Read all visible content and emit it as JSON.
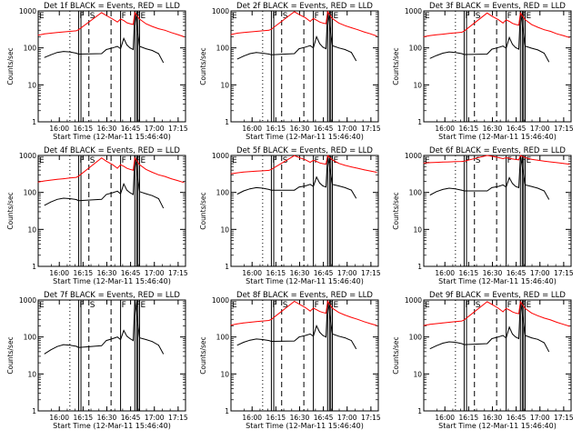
{
  "colors": {
    "events": "#000000",
    "lld": "#ff0000",
    "axis": "#000000",
    "background": "#ffffff"
  },
  "common": {
    "ylabel": "Counts/sec",
    "xlabel": "Start Time (12-Mar-11 15:46:40)",
    "x_ticks": [
      "16:00",
      "16:15",
      "16:30",
      "16:45",
      "17:00",
      "17:15"
    ],
    "y_ticks": [
      "1",
      "10",
      "100",
      "1000"
    ],
    "event_markers": [
      "F",
      "S",
      "F",
      "F",
      "E"
    ]
  },
  "chart_data": [
    {
      "type": "line",
      "title": "Det 1f BLACK = Events, RED = LLD",
      "x_unit": "minutes since 15:46:40",
      "x_ticks_min": [
        13.33,
        28.33,
        43.33,
        58.33,
        73.33,
        88.33
      ],
      "ylim": [
        1,
        1000
      ],
      "ylog": true,
      "xlim": [
        0,
        93
      ],
      "series": [
        {
          "name": "Events",
          "color": "#000000",
          "x": [
            4,
            8,
            12,
            16,
            20,
            24,
            25.5,
            40,
            43,
            47,
            50,
            52,
            54,
            56,
            58,
            60,
            61,
            64,
            68,
            72,
            76,
            79
          ],
          "y": [
            55,
            65,
            75,
            80,
            78,
            72,
            68,
            70,
            90,
            100,
            110,
            95,
            180,
            120,
            100,
            90,
            1000,
            110,
            95,
            85,
            70,
            40
          ]
        },
        {
          "name": "LLD",
          "color": "#ff0000",
          "x": [
            0,
            4,
            8,
            12,
            16,
            20,
            24,
            25.5,
            40,
            43,
            47,
            50,
            52,
            54,
            56,
            58,
            60,
            61,
            64,
            68,
            72,
            76,
            80,
            84,
            88,
            92
          ],
          "y": [
            220,
            240,
            250,
            260,
            270,
            280,
            290,
            310,
            900,
            750,
            600,
            500,
            600,
            550,
            480,
            450,
            430,
            900,
            600,
            450,
            380,
            330,
            300,
            260,
            230,
            200
          ]
        }
      ]
    },
    {
      "type": "line",
      "title": "Det 2f BLACK = Events, RED = LLD",
      "x_unit": "minutes since 15:46:40",
      "x_ticks_min": [
        13.33,
        28.33,
        43.33,
        58.33,
        73.33,
        88.33
      ],
      "ylim": [
        1,
        1000
      ],
      "ylog": true,
      "xlim": [
        0,
        93
      ],
      "series": [
        {
          "name": "Events",
          "color": "#000000",
          "x": [
            4,
            8,
            12,
            16,
            20,
            24,
            25.5,
            40,
            43,
            47,
            50,
            52,
            54,
            56,
            58,
            60,
            61,
            64,
            68,
            72,
            76,
            79
          ],
          "y": [
            50,
            60,
            70,
            75,
            72,
            68,
            65,
            70,
            95,
            105,
            115,
            100,
            200,
            130,
            105,
            95,
            1000,
            115,
            100,
            90,
            75,
            45
          ]
        },
        {
          "name": "LLD",
          "color": "#ff0000",
          "x": [
            0,
            4,
            8,
            12,
            16,
            20,
            24,
            25.5,
            40,
            43,
            47,
            50,
            52,
            54,
            56,
            58,
            60,
            61,
            64,
            68,
            72,
            76,
            80,
            84,
            88,
            92
          ],
          "y": [
            230,
            250,
            260,
            270,
            280,
            290,
            300,
            320,
            950,
            800,
            650,
            520,
            620,
            560,
            500,
            470,
            450,
            950,
            620,
            470,
            400,
            350,
            310,
            270,
            240,
            210
          ]
        }
      ]
    },
    {
      "type": "line",
      "title": "Det 3f BLACK = Events, RED = LLD",
      "x_unit": "minutes since 15:46:40",
      "x_ticks_min": [
        13.33,
        28.33,
        43.33,
        58.33,
        73.33,
        88.33
      ],
      "ylim": [
        1,
        1000
      ],
      "ylog": true,
      "xlim": [
        0,
        93
      ],
      "series": [
        {
          "name": "Events",
          "color": "#000000",
          "x": [
            4,
            8,
            12,
            16,
            20,
            24,
            25.5,
            40,
            43,
            47,
            50,
            52,
            54,
            56,
            58,
            60,
            61,
            64,
            68,
            72,
            76,
            79
          ],
          "y": [
            52,
            62,
            72,
            78,
            75,
            70,
            66,
            68,
            92,
            102,
            112,
            98,
            190,
            125,
            102,
            92,
            1000,
            112,
            98,
            88,
            72,
            42
          ]
        },
        {
          "name": "LLD",
          "color": "#ff0000",
          "x": [
            0,
            4,
            8,
            12,
            16,
            20,
            24,
            25.5,
            40,
            43,
            47,
            50,
            52,
            54,
            56,
            58,
            60,
            61,
            64,
            68,
            72,
            76,
            80,
            84,
            88,
            92
          ],
          "y": [
            200,
            215,
            225,
            235,
            245,
            255,
            265,
            285,
            880,
            720,
            580,
            470,
            570,
            520,
            460,
            430,
            410,
            880,
            580,
            430,
            360,
            310,
            280,
            240,
            215,
            190
          ]
        }
      ]
    },
    {
      "type": "line",
      "title": "Det 4f BLACK = Events, RED = LLD",
      "x_unit": "minutes since 15:46:40",
      "x_ticks_min": [
        13.33,
        28.33,
        43.33,
        58.33,
        73.33,
        88.33
      ],
      "ylim": [
        1,
        1000
      ],
      "ylog": true,
      "xlim": [
        0,
        93
      ],
      "series": [
        {
          "name": "Events",
          "color": "#000000",
          "x": [
            4,
            8,
            12,
            16,
            20,
            24,
            25.5,
            40,
            43,
            47,
            50,
            52,
            54,
            56,
            58,
            60,
            61,
            64,
            68,
            72,
            76,
            79
          ],
          "y": [
            45,
            55,
            65,
            70,
            68,
            64,
            60,
            65,
            88,
            98,
            108,
            92,
            170,
            115,
            98,
            88,
            1000,
            105,
            92,
            82,
            68,
            38
          ]
        },
        {
          "name": "LLD",
          "color": "#ff0000",
          "x": [
            0,
            4,
            8,
            12,
            16,
            20,
            24,
            25.5,
            40,
            43,
            47,
            50,
            52,
            54,
            56,
            58,
            60,
            61,
            64,
            68,
            72,
            76,
            80,
            84,
            88,
            92
          ],
          "y": [
            190,
            205,
            215,
            225,
            235,
            245,
            255,
            275,
            860,
            700,
            560,
            450,
            560,
            510,
            450,
            420,
            400,
            860,
            560,
            420,
            350,
            300,
            270,
            235,
            210,
            185
          ]
        }
      ]
    },
    {
      "type": "line",
      "title": "Det 5f BLACK = Events, RED = LLD",
      "x_unit": "minutes since 15:46:40",
      "x_ticks_min": [
        13.33,
        28.33,
        43.33,
        58.33,
        73.33,
        88.33
      ],
      "ylim": [
        1,
        1000
      ],
      "ylog": true,
      "xlim": [
        0,
        93
      ],
      "series": [
        {
          "name": "Events",
          "color": "#000000",
          "x": [
            4,
            8,
            12,
            16,
            20,
            24,
            25.5,
            40,
            43,
            47,
            50,
            52,
            54,
            56,
            58,
            60,
            61,
            64,
            68,
            72,
            76,
            79
          ],
          "y": [
            90,
            110,
            125,
            135,
            130,
            120,
            115,
            115,
            140,
            150,
            165,
            145,
            260,
            180,
            150,
            140,
            1000,
            165,
            150,
            135,
            115,
            70
          ]
        },
        {
          "name": "LLD",
          "color": "#ff0000",
          "x": [
            0,
            4,
            8,
            12,
            16,
            20,
            24,
            25.5,
            40,
            43,
            47,
            50,
            52,
            54,
            56,
            58,
            60,
            61,
            64,
            68,
            72,
            76,
            80,
            84,
            88,
            92
          ],
          "y": [
            320,
            340,
            355,
            365,
            375,
            385,
            395,
            420,
            990,
            880,
            760,
            650,
            740,
            690,
            630,
            600,
            580,
            990,
            760,
            610,
            540,
            490,
            450,
            410,
            380,
            350
          ]
        }
      ]
    },
    {
      "type": "line",
      "title": "Det 6f BLACK = Events, RED = LLD",
      "x_unit": "minutes since 15:46:40",
      "x_ticks_min": [
        13.33,
        28.33,
        43.33,
        58.33,
        73.33,
        88.33
      ],
      "ylim": [
        1,
        1000
      ],
      "ylog": true,
      "xlim": [
        0,
        93
      ],
      "series": [
        {
          "name": "Events",
          "color": "#000000",
          "x": [
            4,
            8,
            12,
            16,
            20,
            24,
            25.5,
            40,
            43,
            47,
            50,
            52,
            54,
            56,
            58,
            60,
            61,
            64,
            68,
            72,
            76,
            79
          ],
          "y": [
            85,
            105,
            120,
            130,
            125,
            115,
            110,
            110,
            135,
            145,
            160,
            140,
            250,
            175,
            145,
            135,
            1000,
            160,
            145,
            130,
            110,
            65
          ]
        },
        {
          "name": "LLD",
          "color": "#ff0000",
          "x": [
            0,
            4,
            8,
            12,
            16,
            20,
            24,
            25.5,
            40,
            43,
            47,
            50,
            52,
            54,
            56,
            58,
            60,
            61,
            64,
            68,
            72,
            76,
            80,
            84,
            88,
            92
          ],
          "y": [
            620,
            640,
            650,
            660,
            670,
            680,
            690,
            700,
            1000,
            950,
            880,
            820,
            870,
            840,
            800,
            780,
            760,
            1000,
            880,
            790,
            740,
            700,
            670,
            640,
            610,
            580
          ]
        }
      ]
    },
    {
      "type": "line",
      "title": "Det 7f BLACK = Events, RED = LLD",
      "x_unit": "minutes since 15:46:40",
      "x_ticks_min": [
        13.33,
        28.33,
        43.33,
        58.33,
        73.33,
        88.33
      ],
      "ylim": [
        1,
        1000
      ],
      "ylog": true,
      "xlim": [
        0,
        93
      ],
      "series": [
        {
          "name": "Events",
          "color": "#000000",
          "x": [
            4,
            8,
            12,
            16,
            20,
            24,
            25.5,
            40,
            43,
            47,
            50,
            52,
            54,
            56,
            58,
            60,
            61,
            64,
            68,
            72,
            76,
            79
          ],
          "y": [
            35,
            45,
            55,
            62,
            60,
            56,
            52,
            58,
            80,
            90,
            100,
            85,
            150,
            105,
            90,
            80,
            1000,
            95,
            85,
            75,
            60,
            35
          ]
        }
      ]
    },
    {
      "type": "line",
      "title": "Det 8f BLACK = Events, RED = LLD",
      "x_unit": "minutes since 15:46:40",
      "x_ticks_min": [
        13.33,
        28.33,
        43.33,
        58.33,
        73.33,
        88.33
      ],
      "ylim": [
        1,
        1000
      ],
      "ylog": true,
      "xlim": [
        0,
        93
      ],
      "series": [
        {
          "name": "Events",
          "color": "#000000",
          "x": [
            4,
            8,
            12,
            16,
            20,
            24,
            25.5,
            40,
            43,
            47,
            50,
            52,
            54,
            56,
            58,
            60,
            61,
            64,
            68,
            72,
            76,
            79
          ],
          "y": [
            60,
            72,
            82,
            88,
            85,
            80,
            76,
            78,
            100,
            110,
            120,
            105,
            200,
            135,
            110,
            100,
            1000,
            120,
            105,
            95,
            80,
            48
          ]
        },
        {
          "name": "LLD",
          "color": "#ff0000",
          "x": [
            0,
            4,
            8,
            12,
            16,
            20,
            24,
            25.5,
            40,
            43,
            47,
            50,
            52,
            54,
            56,
            58,
            60,
            61,
            64,
            68,
            72,
            76,
            80,
            84,
            88,
            92
          ],
          "y": [
            210,
            225,
            240,
            250,
            260,
            270,
            280,
            300,
            920,
            780,
            620,
            500,
            600,
            545,
            490,
            460,
            440,
            920,
            600,
            460,
            390,
            340,
            300,
            260,
            230,
            205
          ]
        }
      ]
    },
    {
      "type": "line",
      "title": "Det 9f BLACK = Events, RED = LLD",
      "x_unit": "minutes since 15:46:40",
      "x_ticks_min": [
        13.33,
        28.33,
        43.33,
        58.33,
        73.33,
        88.33
      ],
      "ylim": [
        1,
        1000
      ],
      "ylog": true,
      "xlim": [
        0,
        93
      ],
      "series": [
        {
          "name": "Events",
          "color": "#000000",
          "x": [
            4,
            8,
            12,
            16,
            20,
            24,
            25.5,
            40,
            43,
            47,
            50,
            52,
            54,
            56,
            58,
            60,
            61,
            64,
            68,
            72,
            76,
            79
          ],
          "y": [
            48,
            58,
            68,
            74,
            72,
            66,
            62,
            66,
            90,
            100,
            110,
            94,
            185,
            120,
            100,
            90,
            1000,
            110,
            95,
            86,
            70,
            40
          ]
        },
        {
          "name": "LLD",
          "color": "#ff0000",
          "x": [
            0,
            4,
            8,
            12,
            16,
            20,
            24,
            25.5,
            40,
            43,
            47,
            50,
            52,
            54,
            56,
            58,
            60,
            61,
            64,
            68,
            72,
            76,
            80,
            84,
            88,
            92
          ],
          "y": [
            205,
            220,
            230,
            240,
            250,
            260,
            270,
            290,
            900,
            760,
            600,
            480,
            590,
            535,
            475,
            445,
            425,
            900,
            590,
            445,
            375,
            325,
            290,
            250,
            220,
            195
          ]
        }
      ]
    }
  ]
}
